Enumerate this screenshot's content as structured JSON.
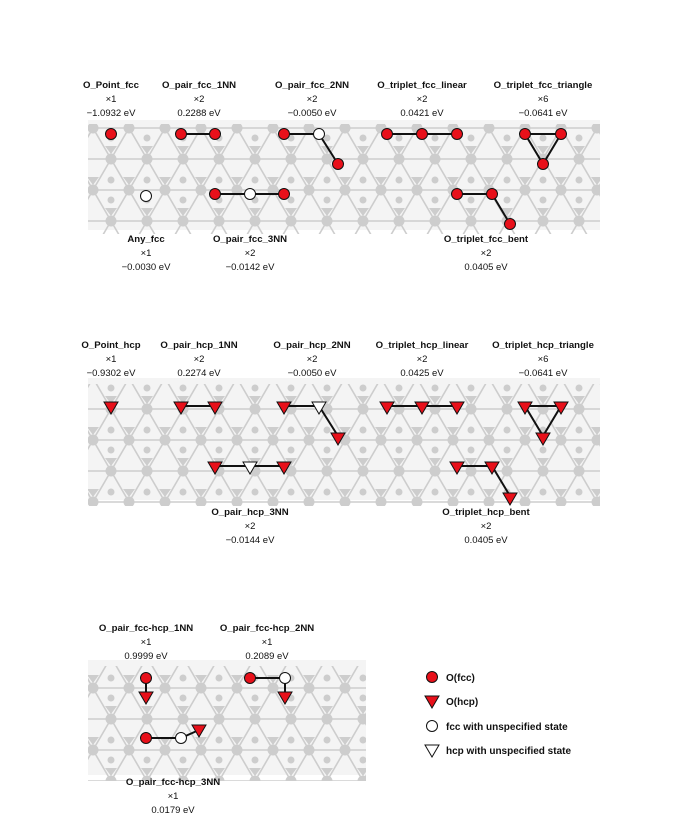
{
  "colors": {
    "oxygen": "#e8101a",
    "oxygen_stroke": "#111111",
    "lattice": "#c9c9c9",
    "bond": "#111111"
  },
  "panels": [
    {
      "id": "fcc",
      "clusters": [
        {
          "name": "O_Point_fcc",
          "mult": "×1",
          "energy": "−1.0932 eV"
        },
        {
          "name": "O_pair_fcc_1NN",
          "mult": "×2",
          "energy": "0.2288 eV"
        },
        {
          "name": "O_pair_fcc_2NN",
          "mult": "×2",
          "energy": "−0.0050 eV"
        },
        {
          "name": "O_triplet_fcc_linear",
          "mult": "×2",
          "energy": "0.0421 eV"
        },
        {
          "name": "O_triplet_fcc_triangle",
          "mult": "×6",
          "energy": "−0.0641 eV"
        },
        {
          "name": "Any_fcc",
          "mult": "×1",
          "energy": "−0.0030 eV"
        },
        {
          "name": "O_pair_fcc_3NN",
          "mult": "×2",
          "energy": "−0.0142 eV"
        },
        {
          "name": "O_triplet_fcc_bent",
          "mult": "×2",
          "energy": "0.0405 eV"
        }
      ]
    },
    {
      "id": "hcp",
      "clusters": [
        {
          "name": "O_Point_hcp",
          "mult": "×1",
          "energy": "−0.9302 eV"
        },
        {
          "name": "O_pair_hcp_1NN",
          "mult": "×2",
          "energy": "0.2274 eV"
        },
        {
          "name": "O_pair_hcp_2NN",
          "mult": "×2",
          "energy": "−0.0050 eV"
        },
        {
          "name": "O_triplet_hcp_linear",
          "mult": "×2",
          "energy": "0.0425 eV"
        },
        {
          "name": "O_triplet_hcp_triangle",
          "mult": "×6",
          "energy": "−0.0641 eV"
        },
        {
          "name": "O_pair_hcp_3NN",
          "mult": "×2",
          "energy": "−0.0144 eV"
        },
        {
          "name": "O_triplet_hcp_bent",
          "mult": "×2",
          "energy": "0.0405 eV"
        }
      ]
    },
    {
      "id": "mixed",
      "clusters": [
        {
          "name": "O_pair_fcc-hcp_1NN",
          "mult": "×1",
          "energy": "0.9999 eV"
        },
        {
          "name": "O_pair_fcc-hcp_2NN",
          "mult": "×1",
          "energy": "0.2089 eV"
        },
        {
          "name": "O_pair_fcc-hcp_3NN",
          "mult": "×1",
          "energy": "0.0179 eV"
        }
      ]
    }
  ],
  "legend": [
    {
      "symbol": "fcc-filled",
      "label": "O(fcc)"
    },
    {
      "symbol": "hcp-filled",
      "label": "O(hcp)"
    },
    {
      "symbol": "fcc-open",
      "label": "fcc with unspecified state"
    },
    {
      "symbol": "hcp-open",
      "label": "hcp with unspecified state"
    }
  ]
}
